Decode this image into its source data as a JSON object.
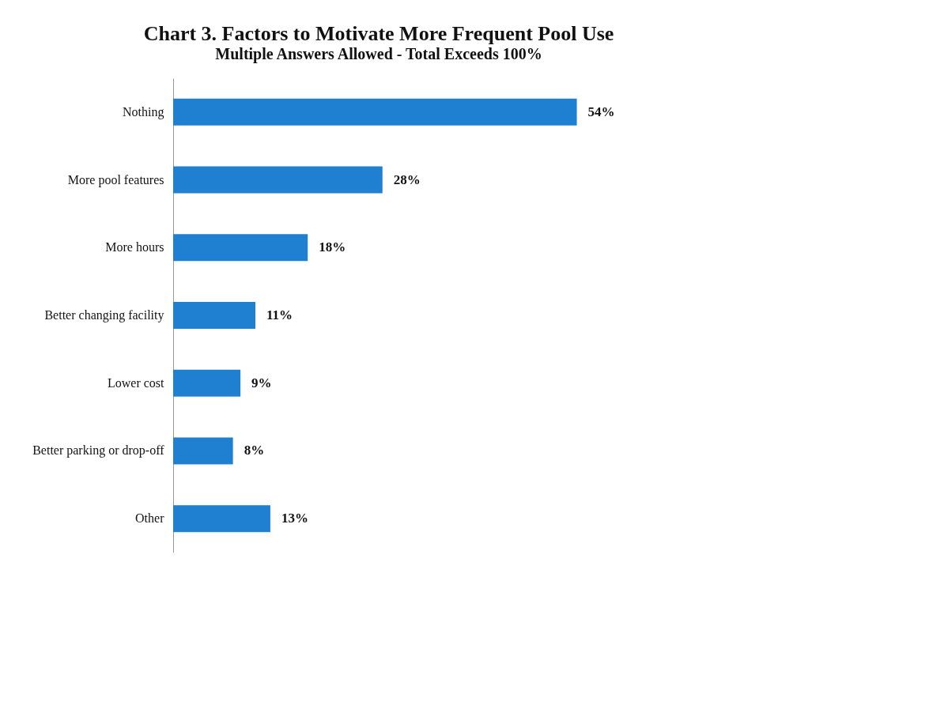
{
  "chart_data": {
    "type": "bar",
    "orientation": "horizontal",
    "title": "Chart 3. Factors to Motivate More Frequent Pool Use",
    "subtitle": "Multiple Answers Allowed - Total Exceeds 100%",
    "categories": [
      "Nothing",
      "More pool features",
      "More hours",
      "Better changing facility",
      "Lower cost",
      "Better parking or drop-off",
      "Other"
    ],
    "values": [
      54,
      28,
      18,
      11,
      9,
      8,
      13
    ],
    "value_labels": [
      "54%",
      "28%",
      "18%",
      "11%",
      "9%",
      "8%",
      "13%"
    ],
    "color": "#1f7fd0",
    "grid": false
  }
}
